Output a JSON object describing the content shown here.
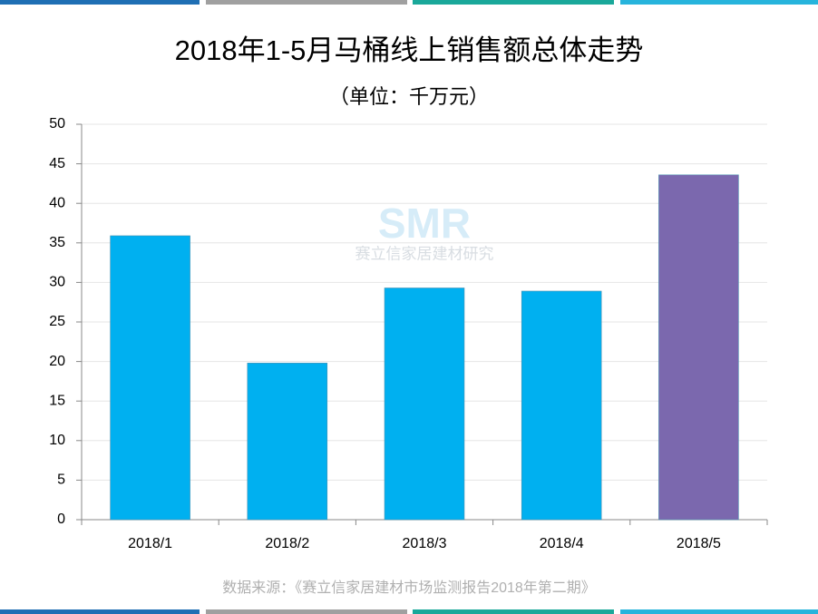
{
  "chart_data": {
    "type": "bar",
    "title": "2018年1-5月马桶线上销售额总体走势",
    "subtitle": "（单位：千万元）",
    "categories": [
      "2018/1",
      "2018/2",
      "2018/3",
      "2018/4",
      "2018/5"
    ],
    "values": [
      35.9,
      19.8,
      29.3,
      28.9,
      43.6
    ],
    "colors": [
      "#00b0f0",
      "#00b0f0",
      "#00b0f0",
      "#00b0f0",
      "#7b68ae"
    ],
    "ylim": [
      0,
      50
    ],
    "yticks": [
      0,
      5,
      10,
      15,
      20,
      25,
      30,
      35,
      40,
      45,
      50
    ],
    "grid": true,
    "watermark": {
      "logo": "SMR",
      "text": "赛立信家居建材研究"
    },
    "source": "数据来源：《赛立信家居建材市场监测报告2018年第二期》"
  }
}
